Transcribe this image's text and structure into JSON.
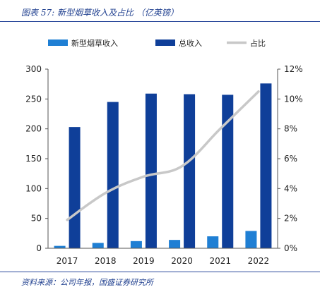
{
  "caption": "图表 57: 新型烟草收入及占比 （亿英镑）",
  "source": "资料来源：公司年报，国盛证券研究所",
  "chart_data": {
    "type": "bar",
    "categories": [
      "2017",
      "2018",
      "2019",
      "2020",
      "2021",
      "2022"
    ],
    "series": [
      {
        "name": "新型烟草收入",
        "type": "bar",
        "axis": "left",
        "color": "#1f7fd4",
        "values": [
          4,
          9,
          12,
          14,
          20,
          29
        ]
      },
      {
        "name": "总收入",
        "type": "bar",
        "axis": "left",
        "color": "#0f3f99",
        "values": [
          203,
          245,
          259,
          258,
          257,
          276
        ]
      },
      {
        "name": "占比",
        "type": "line",
        "axis": "right",
        "color": "#c8c8c8",
        "values": [
          0.019,
          0.037,
          0.048,
          0.055,
          0.08,
          0.105
        ]
      }
    ],
    "ylim_left": [
      0,
      300
    ],
    "ylim_right": [
      0,
      0.12
    ],
    "left_ticks": [
      "0",
      "50",
      "100",
      "150",
      "200",
      "250",
      "300"
    ],
    "right_ticks": [
      "0%",
      "2%",
      "4%",
      "6%",
      "8%",
      "10%",
      "12%"
    ],
    "legend_position": "top",
    "grid": false
  }
}
